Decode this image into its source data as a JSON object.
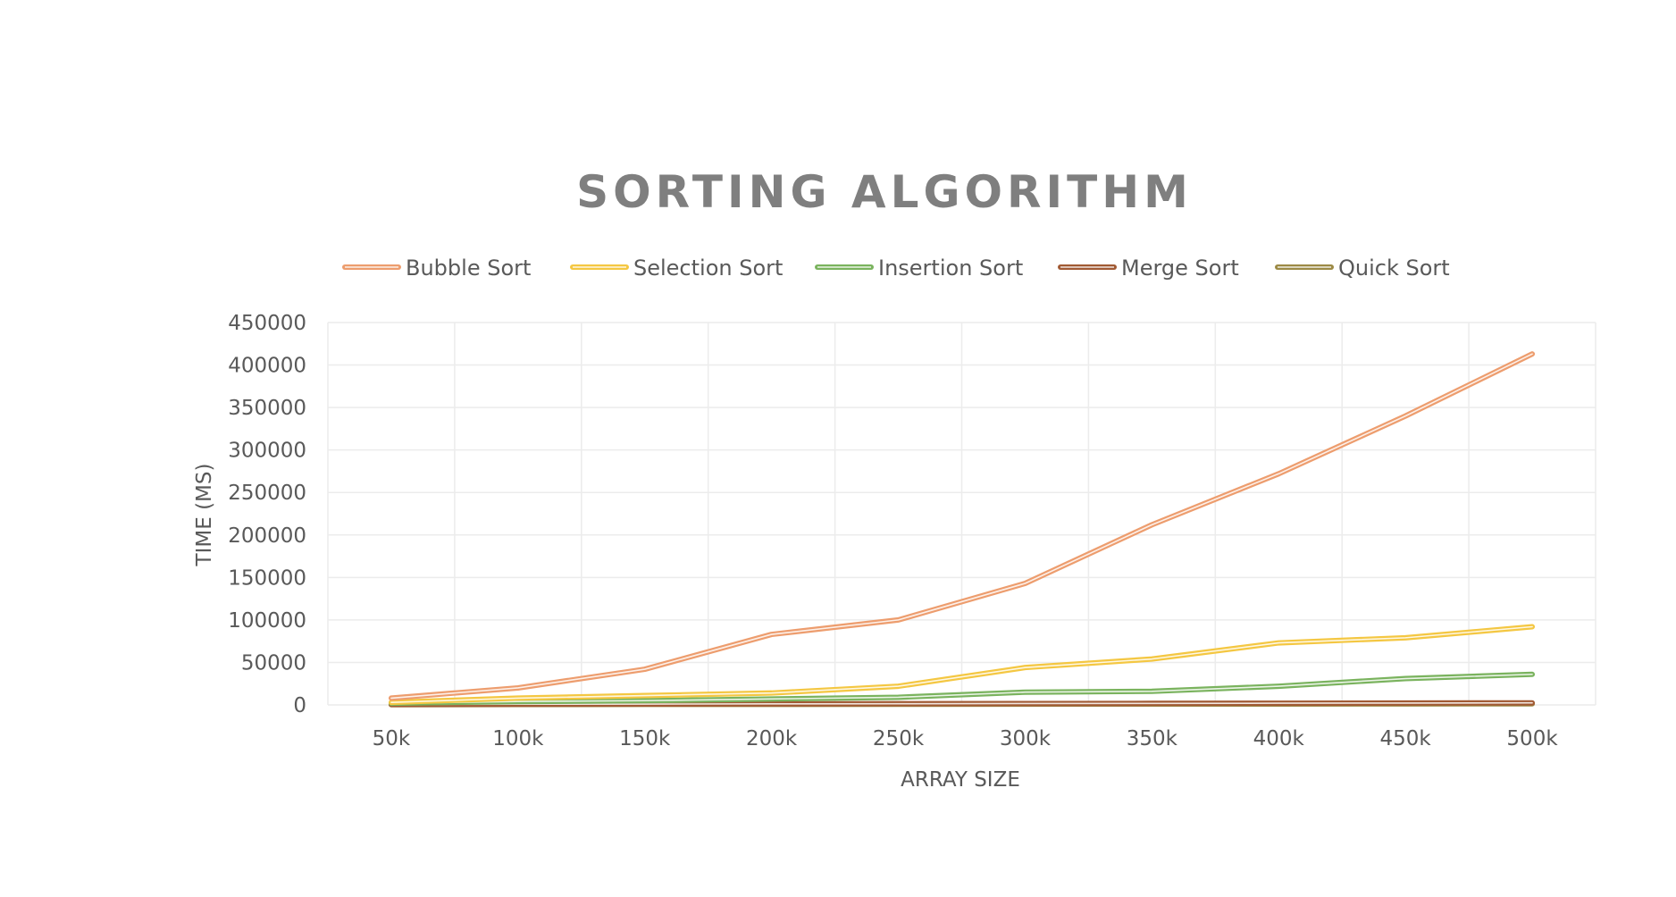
{
  "chart_data": {
    "type": "line",
    "title": "SORTING ALGORITHM",
    "xlabel": "ARRAY SIZE",
    "ylabel": "TIME (MS)",
    "categories": [
      "50k",
      "100k",
      "150k",
      "200k",
      "250k",
      "300k",
      "350k",
      "400k",
      "450k",
      "500k"
    ],
    "ylim": [
      0,
      450000
    ],
    "yticks": [
      0,
      50000,
      100000,
      150000,
      200000,
      250000,
      300000,
      350000,
      400000,
      450000
    ],
    "grid": true,
    "legend_position": "top",
    "series": [
      {
        "name": "Bubble Sort",
        "color": "#ed9d6e",
        "values": [
          8000,
          20000,
          42000,
          83000,
          100000,
          143000,
          212000,
          272000,
          340000,
          413000
        ]
      },
      {
        "name": "Selection Sort",
        "color": "#f4c742",
        "values": [
          3000,
          8000,
          11000,
          14000,
          22000,
          44000,
          54000,
          73000,
          79000,
          92000
        ]
      },
      {
        "name": "Insertion Sort",
        "color": "#7ab35e",
        "values": [
          2000,
          4000,
          5000,
          7000,
          9000,
          15000,
          16000,
          22000,
          31000,
          36000
        ]
      },
      {
        "name": "Merge Sort",
        "color": "#a15a34",
        "values": [
          500,
          800,
          1000,
          1200,
          1400,
          1600,
          1800,
          2000,
          2200,
          2400
        ]
      },
      {
        "name": "Quick Sort",
        "color": "#9c8a45",
        "values": [
          300,
          500,
          600,
          700,
          800,
          900,
          1000,
          1100,
          1200,
          1300
        ]
      }
    ]
  }
}
